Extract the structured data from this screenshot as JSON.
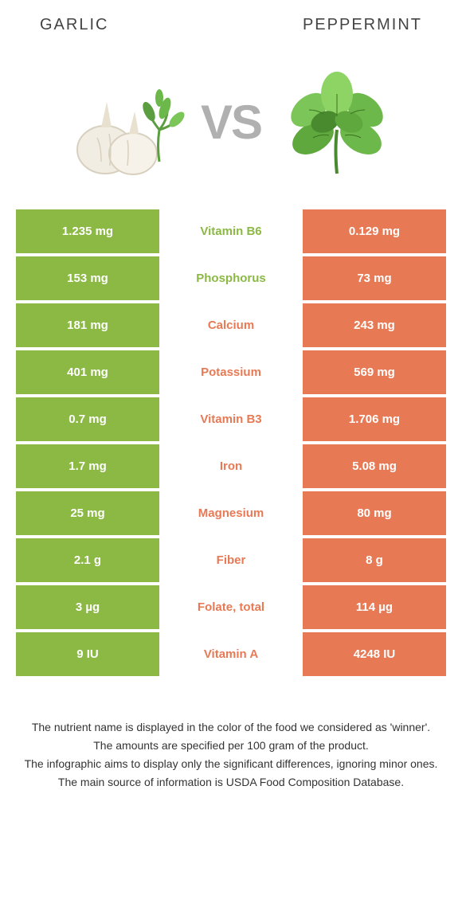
{
  "header": {
    "left_title": "Garlic",
    "right_title": "Peppermint"
  },
  "vs_label": "VS",
  "colors": {
    "garlic": "#8bb944",
    "peppermint": "#e77a55",
    "row_bg": "#ffffff"
  },
  "rows": [
    {
      "nutrient": "Vitamin B6",
      "left": "1.235 mg",
      "right": "0.129 mg",
      "winner": "left"
    },
    {
      "nutrient": "Phosphorus",
      "left": "153 mg",
      "right": "73 mg",
      "winner": "left"
    },
    {
      "nutrient": "Calcium",
      "left": "181 mg",
      "right": "243 mg",
      "winner": "right"
    },
    {
      "nutrient": "Potassium",
      "left": "401 mg",
      "right": "569 mg",
      "winner": "right"
    },
    {
      "nutrient": "Vitamin B3",
      "left": "0.7 mg",
      "right": "1.706 mg",
      "winner": "right"
    },
    {
      "nutrient": "Iron",
      "left": "1.7 mg",
      "right": "5.08 mg",
      "winner": "right"
    },
    {
      "nutrient": "Magnesium",
      "left": "25 mg",
      "right": "80 mg",
      "winner": "right"
    },
    {
      "nutrient": "Fiber",
      "left": "2.1 g",
      "right": "8 g",
      "winner": "right"
    },
    {
      "nutrient": "Folate, total",
      "left": "3 µg",
      "right": "114 µg",
      "winner": "right"
    },
    {
      "nutrient": "Vitamin A",
      "left": "9 IU",
      "right": "4248 IU",
      "winner": "right"
    }
  ],
  "footnotes": [
    "The nutrient name is displayed in the color of the food we considered as 'winner'.",
    "The amounts are specified per 100 gram of the product.",
    "The infographic aims to display only the significant differences, ignoring minor ones.",
    "The main source of information is USDA Food Composition Database."
  ]
}
